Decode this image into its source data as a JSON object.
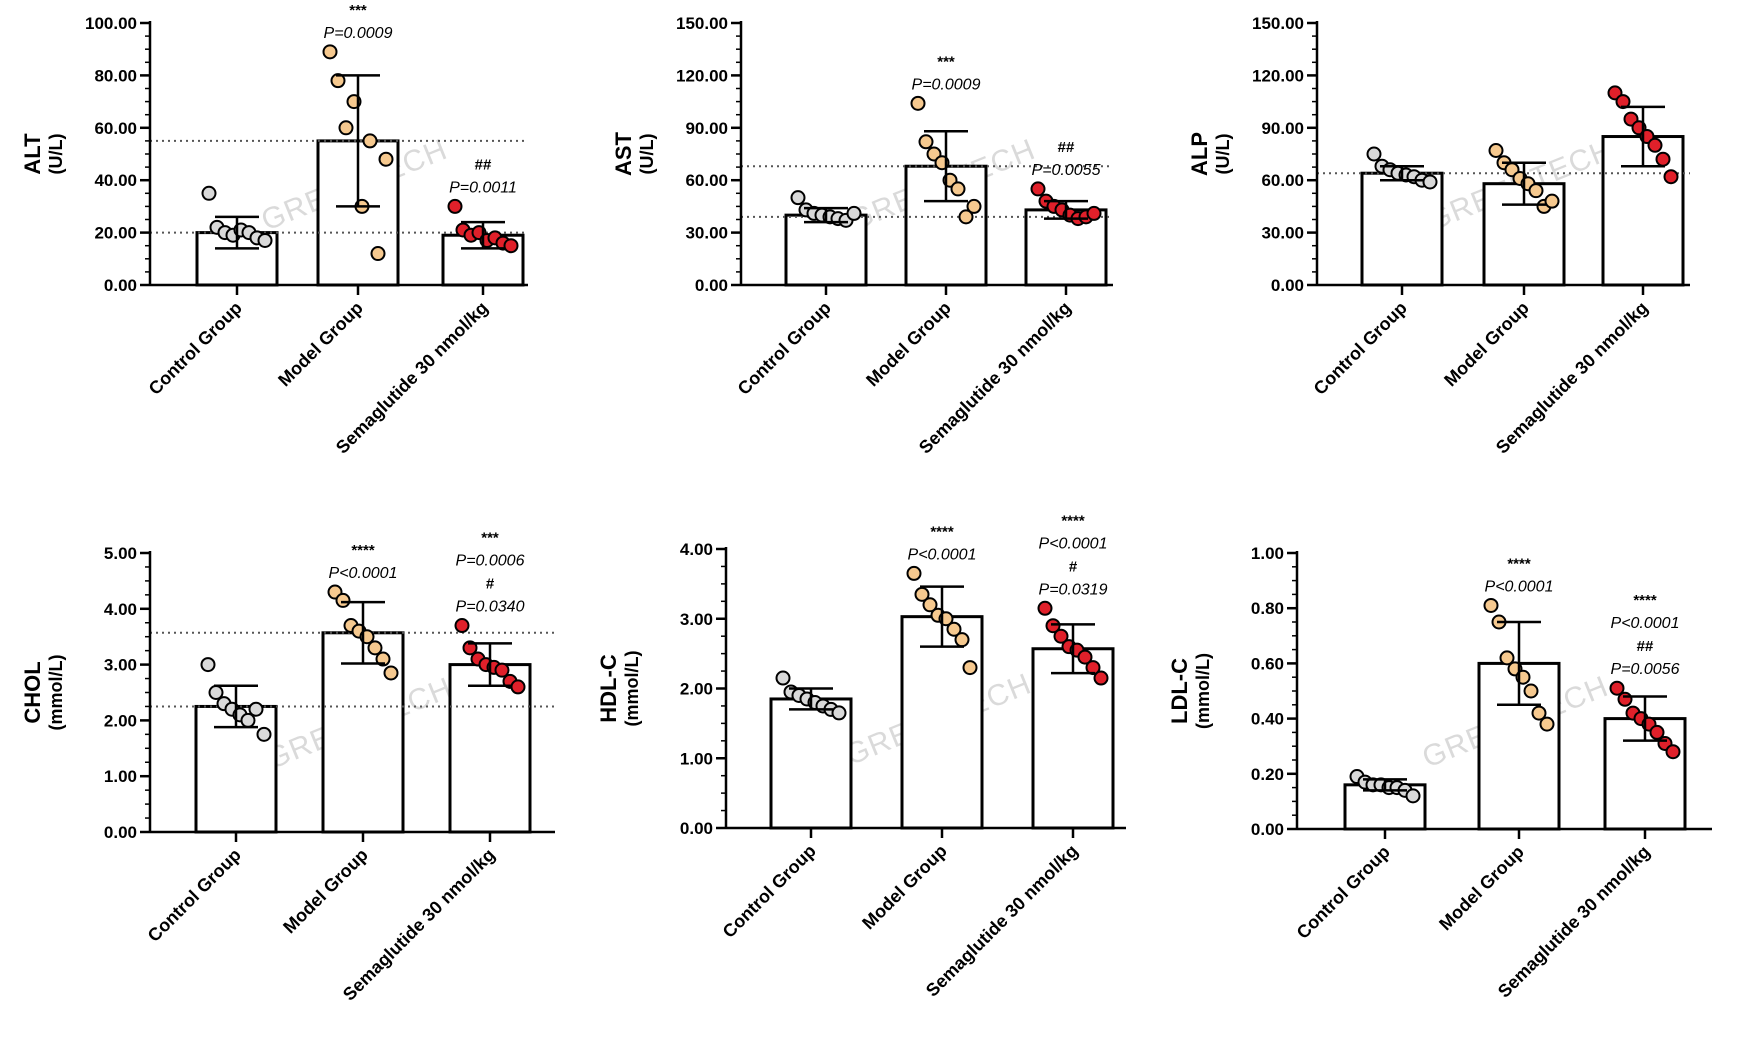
{
  "watermark": "GREENTECH",
  "colors": {
    "control": "#d9d9d9",
    "model": "#f6c98f",
    "treatment": "#e0202a"
  },
  "chart_data": [
    {
      "type": "bar",
      "title": "",
      "ylabel": "ALT",
      "yunit": "(U/L)",
      "categories": [
        "Control Group",
        "Model Group",
        "Semaglutide 30 nmol/kg"
      ],
      "yticks": [
        "0.00",
        "20.00",
        "40.00",
        "60.00",
        "80.00",
        "100.00"
      ],
      "ylim": [
        0,
        100
      ],
      "values": [
        20,
        55,
        19
      ],
      "sd": [
        6,
        25,
        5
      ],
      "points": [
        [
          35,
          22,
          20,
          19,
          21,
          20,
          18,
          17
        ],
        [
          89,
          78,
          60,
          70,
          30,
          55,
          12,
          48
        ],
        [
          30,
          21,
          19,
          20,
          17,
          18,
          16,
          15
        ]
      ],
      "ref_lines": [
        55,
        20
      ],
      "annotations": [
        {
          "category": 1,
          "lines": [
            "***",
            "P=0.0009"
          ]
        },
        {
          "category": 2,
          "lines": [
            "##",
            "P=0.0011"
          ]
        }
      ]
    },
    {
      "type": "bar",
      "title": "",
      "ylabel": "AST",
      "yunit": "(U/L)",
      "categories": [
        "Control Group",
        "Model Group",
        "Semaglutide 30 nmol/kg"
      ],
      "yticks": [
        "0.00",
        "30.00",
        "60.00",
        "90.00",
        "120.00",
        "150.00"
      ],
      "ylim": [
        0,
        150
      ],
      "values": [
        40,
        68,
        43
      ],
      "sd": [
        4,
        20,
        5
      ],
      "points": [
        [
          50,
          43,
          41,
          40,
          39,
          38,
          37,
          41
        ],
        [
          104,
          82,
          75,
          70,
          60,
          55,
          39,
          45
        ],
        [
          55,
          48,
          45,
          43,
          40,
          38,
          39,
          41
        ]
      ],
      "ref_lines": [
        68,
        39
      ],
      "annotations": [
        {
          "category": 1,
          "lines": [
            "***",
            "P=0.0009"
          ]
        },
        {
          "category": 2,
          "lines": [
            "##",
            "P=0.0055"
          ]
        }
      ]
    },
    {
      "type": "bar",
      "title": "",
      "ylabel": "ALP",
      "yunit": "(U/L)",
      "categories": [
        "Control Group",
        "Model Group",
        "Semaglutide 30 nmol/kg"
      ],
      "yticks": [
        "0.00",
        "30.00",
        "60.00",
        "90.00",
        "120.00",
        "150.00"
      ],
      "ylim": [
        0,
        150
      ],
      "values": [
        64,
        58,
        85
      ],
      "sd": [
        4,
        12,
        17
      ],
      "points": [
        [
          75,
          68,
          66,
          64,
          63,
          62,
          60,
          59
        ],
        [
          77,
          70,
          66,
          61,
          58,
          54,
          45,
          48
        ],
        [
          110,
          105,
          95,
          90,
          85,
          80,
          72,
          62
        ]
      ],
      "ref_lines": [
        64
      ],
      "annotations": []
    },
    {
      "type": "bar",
      "title": "",
      "ylabel": "CHOL",
      "yunit": "(mmol/L)",
      "categories": [
        "Control Group",
        "Model Group",
        "Semaglutide 30 nmol/kg"
      ],
      "yticks": [
        "0.00",
        "1.00",
        "2.00",
        "3.00",
        "4.00",
        "5.00"
      ],
      "ylim": [
        0,
        5
      ],
      "values": [
        2.25,
        3.57,
        3.0
      ],
      "sd": [
        0.37,
        0.55,
        0.38
      ],
      "points": [
        [
          3.0,
          2.5,
          2.3,
          2.2,
          2.1,
          2.0,
          2.2,
          1.75
        ],
        [
          4.3,
          4.15,
          3.7,
          3.6,
          3.5,
          3.3,
          3.1,
          2.85
        ],
        [
          3.7,
          3.3,
          3.1,
          3.0,
          2.95,
          2.9,
          2.7,
          2.6
        ]
      ],
      "ref_lines": [
        3.57,
        2.25
      ],
      "annotations": [
        {
          "category": 1,
          "lines": [
            "****",
            "P<0.0001"
          ]
        },
        {
          "category": 2,
          "lines": [
            "***",
            "P=0.0006",
            "#",
            "P=0.0340"
          ]
        }
      ]
    },
    {
      "type": "bar",
      "title": "",
      "ylabel": "HDL-C",
      "yunit": "(mmol/L)",
      "categories": [
        "Control Group",
        "Model Group",
        "Semaglutide 30 nmol/kg"
      ],
      "yticks": [
        "0.00",
        "1.00",
        "2.00",
        "3.00",
        "4.00"
      ],
      "ylim": [
        0,
        4
      ],
      "values": [
        1.85,
        3.03,
        2.57
      ],
      "sd": [
        0.15,
        0.43,
        0.35
      ],
      "points": [
        [
          2.15,
          1.95,
          1.9,
          1.85,
          1.8,
          1.75,
          1.7,
          1.65
        ],
        [
          3.65,
          3.35,
          3.2,
          3.05,
          3.0,
          2.85,
          2.7,
          2.3
        ],
        [
          3.15,
          2.9,
          2.75,
          2.6,
          2.55,
          2.45,
          2.3,
          2.15
        ]
      ],
      "ref_lines": [],
      "annotations": [
        {
          "category": 1,
          "lines": [
            "****",
            "P<0.0001"
          ]
        },
        {
          "category": 2,
          "lines": [
            "****",
            "P<0.0001",
            "#",
            "P=0.0319"
          ]
        }
      ]
    },
    {
      "type": "bar",
      "title": "",
      "ylabel": "LDL-C",
      "yunit": "(mmol/L)",
      "categories": [
        "Control Group",
        "Model Group",
        "Semaglutide 30 nmol/kg"
      ],
      "yticks": [
        "0.00",
        "0.20",
        "0.40",
        "0.60",
        "0.80",
        "1.00"
      ],
      "ylim": [
        0,
        1
      ],
      "values": [
        0.16,
        0.6,
        0.4
      ],
      "sd": [
        0.02,
        0.15,
        0.08
      ],
      "points": [
        [
          0.19,
          0.17,
          0.16,
          0.16,
          0.15,
          0.15,
          0.14,
          0.12
        ],
        [
          0.81,
          0.75,
          0.62,
          0.58,
          0.55,
          0.5,
          0.42,
          0.38
        ],
        [
          0.51,
          0.47,
          0.42,
          0.4,
          0.38,
          0.35,
          0.31,
          0.28
        ]
      ],
      "ref_lines": [],
      "annotations": [
        {
          "category": 1,
          "lines": [
            "****",
            "P<0.0001"
          ]
        },
        {
          "category": 2,
          "lines": [
            "****",
            "P<0.0001",
            "##",
            "P=0.0056"
          ]
        }
      ]
    }
  ]
}
